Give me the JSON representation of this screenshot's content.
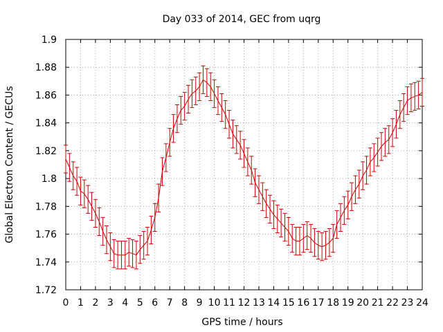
{
  "chart_data": {
    "type": "line",
    "title": "Day 033 of 2014, GEC from uqrg",
    "xlabel": "GPS time / hours",
    "ylabel": "Global Electron Content / GECUs",
    "xlim": [
      0,
      24
    ],
    "ylim": [
      1.72,
      1.9
    ],
    "x_ticks": [
      0,
      1,
      2,
      3,
      4,
      5,
      6,
      7,
      8,
      9,
      10,
      11,
      12,
      13,
      14,
      15,
      16,
      17,
      18,
      19,
      20,
      21,
      22,
      23,
      24
    ],
    "x_tick_labels": [
      "0",
      "1",
      "2",
      "3",
      "4",
      "5",
      "6",
      "7",
      "8",
      "9",
      "10",
      "11",
      "12",
      "13",
      "14",
      "15",
      "16",
      "17",
      "18",
      "19",
      "20",
      "21",
      "22",
      "23",
      "24"
    ],
    "y_ticks": [
      1.72,
      1.74,
      1.76,
      1.78,
      1.8,
      1.82,
      1.84,
      1.86,
      1.88,
      1.9
    ],
    "y_tick_labels": [
      "1.72",
      "1.74",
      "1.76",
      "1.78",
      "1.8",
      "1.82",
      "1.84",
      "1.86",
      "1.88",
      "1.9"
    ],
    "grid": true,
    "series": [
      {
        "name": "GEC",
        "color": "#cc0000",
        "error": 0.01,
        "x": [
          0,
          0.25,
          0.5,
          0.75,
          1,
          1.25,
          1.5,
          1.75,
          2,
          2.25,
          2.5,
          2.75,
          3,
          3.25,
          3.5,
          3.75,
          4,
          4.25,
          4.5,
          4.75,
          5,
          5.25,
          5.5,
          5.75,
          6,
          6.25,
          6.5,
          6.75,
          7,
          7.25,
          7.5,
          7.75,
          8,
          8.25,
          8.5,
          8.75,
          9,
          9.25,
          9.5,
          9.75,
          10,
          10.25,
          10.5,
          10.75,
          11,
          11.25,
          11.5,
          11.75,
          12,
          12.25,
          12.5,
          12.75,
          13,
          13.25,
          13.5,
          13.75,
          14,
          14.25,
          14.5,
          14.75,
          15,
          15.25,
          15.5,
          15.75,
          16,
          16.25,
          16.5,
          16.75,
          17,
          17.25,
          17.5,
          17.75,
          18,
          18.25,
          18.5,
          18.75,
          19,
          19.25,
          19.5,
          19.75,
          20,
          20.25,
          20.5,
          20.75,
          21,
          21.25,
          21.5,
          21.75,
          22,
          22.25,
          22.5,
          22.75,
          23,
          23.25,
          23.5,
          23.75,
          24
        ],
        "values": [
          1.814,
          1.808,
          1.802,
          1.798,
          1.791,
          1.789,
          1.785,
          1.78,
          1.775,
          1.769,
          1.762,
          1.756,
          1.751,
          1.746,
          1.745,
          1.745,
          1.745,
          1.747,
          1.746,
          1.745,
          1.749,
          1.752,
          1.755,
          1.763,
          1.772,
          1.786,
          1.805,
          1.815,
          1.826,
          1.836,
          1.843,
          1.849,
          1.852,
          1.857,
          1.861,
          1.863,
          1.866,
          1.871,
          1.869,
          1.866,
          1.861,
          1.856,
          1.851,
          1.846,
          1.839,
          1.832,
          1.828,
          1.824,
          1.818,
          1.812,
          1.806,
          1.797,
          1.792,
          1.787,
          1.782,
          1.778,
          1.774,
          1.771,
          1.768,
          1.765,
          1.762,
          1.757,
          1.755,
          1.755,
          1.757,
          1.759,
          1.757,
          1.754,
          1.752,
          1.751,
          1.752,
          1.754,
          1.757,
          1.767,
          1.772,
          1.777,
          1.781,
          1.787,
          1.792,
          1.796,
          1.802,
          1.806,
          1.812,
          1.815,
          1.819,
          1.823,
          1.826,
          1.828,
          1.833,
          1.839,
          1.846,
          1.851,
          1.856,
          1.858,
          1.859,
          1.86,
          1.862
        ]
      }
    ]
  }
}
